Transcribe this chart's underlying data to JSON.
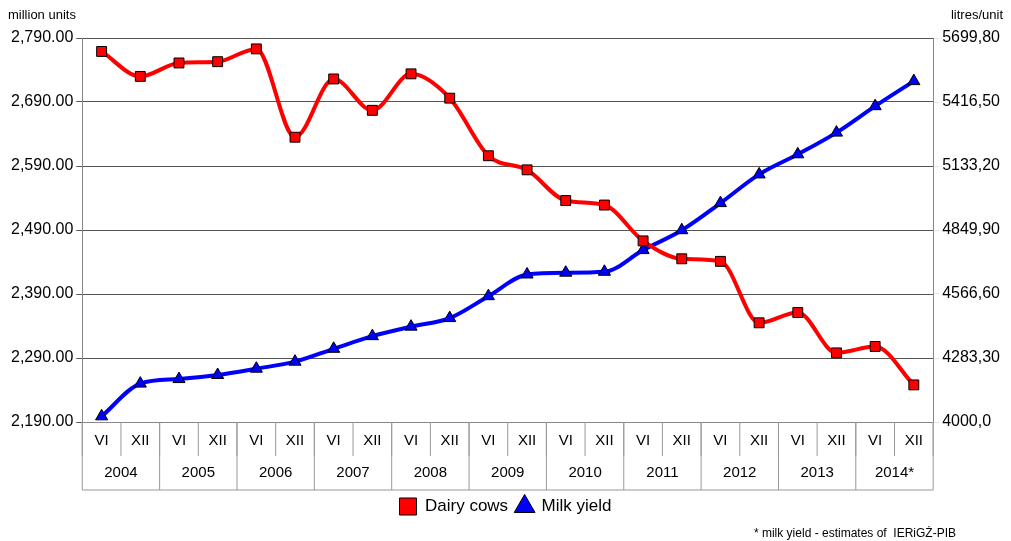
{
  "chart_data": {
    "type": "line",
    "ylabel": "million units",
    "y2label": "litres/unit",
    "categories": [
      "VI",
      "XII",
      "VI",
      "XII",
      "VI",
      "XII",
      "VI",
      "XII",
      "VI",
      "XII",
      "VI",
      "XII",
      "VI",
      "XII",
      "VI",
      "XII",
      "VI",
      "XII",
      "VI",
      "XII",
      "VI",
      "XII"
    ],
    "series": [
      {
        "name": "Dairy cows",
        "color": "#ff0000",
        "marker": "square",
        "values": [
          2769,
          2730,
          2751,
          2753,
          2773,
          2635,
          2726,
          2677,
          2734,
          2696,
          2606,
          2584,
          2536,
          2529,
          2473,
          2445,
          2441,
          2345,
          2361,
          2298,
          2308,
          2248
        ]
      },
      {
        "name": "Milk yield",
        "color": "#0000ff",
        "marker": "triangle",
        "axis": "y2",
        "values": [
          4025,
          4170,
          4190,
          4208,
          4236,
          4267,
          4324,
          4380,
          4422,
          4460,
          4557,
          4653,
          4661,
          4665,
          4761,
          4849,
          4969,
          5096,
          5185,
          5281,
          5398,
          5509
        ]
      }
    ],
    "ylim": [
      2190,
      2790
    ],
    "yticks": [
      {
        "value": 2190,
        "label": "2,190.00"
      },
      {
        "value": 2290,
        "label": "2,290.00"
      },
      {
        "value": 2390,
        "label": "2,390.00"
      },
      {
        "value": 2490,
        "label": "2,490.00"
      },
      {
        "value": 2590,
        "label": "2,590.00"
      },
      {
        "value": 2690,
        "label": "2,690.00"
      },
      {
        "value": 2790,
        "label": "2,790.00"
      }
    ],
    "y2lim": [
      4000,
      5699.8
    ],
    "y2ticks": [
      {
        "value": 4000,
        "label": "4000,0"
      },
      {
        "value": 4283.3,
        "label": "4283,30"
      },
      {
        "value": 4566.6,
        "label": "4566,60"
      },
      {
        "value": 4849.9,
        "label": "4849,90"
      },
      {
        "value": 5133.2,
        "label": "5133,20"
      },
      {
        "value": 5416.5,
        "label": "5416,50"
      },
      {
        "value": 5699.8,
        "label": "5699,80"
      }
    ],
    "grid": "y",
    "legend": "bottom",
    "annotations": [
      "2004",
      "2005",
      "2006",
      "2007",
      "2008",
      "2009",
      "2010",
      "2011",
      "2012",
      "2013",
      "2014*",
      "* milk yield - estimates of  IERiGŻ-PIB"
    ]
  }
}
